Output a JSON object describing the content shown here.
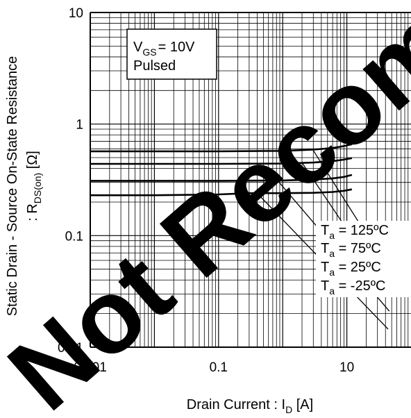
{
  "chart_data": {
    "type": "line",
    "scale": {
      "x": "log",
      "y": "log"
    },
    "xlim": [
      0.001,
      100
    ],
    "ylim": [
      0.01,
      10
    ],
    "grid": true,
    "x_ticks": [
      {
        "value": 0.001,
        "label": "0.001"
      },
      {
        "value": 0.1,
        "label": "0.1"
      },
      {
        "value": 10,
        "label": "10"
      }
    ],
    "y_ticks": [
      {
        "value": 10,
        "label": "10"
      },
      {
        "value": 1,
        "label": "1"
      },
      {
        "value": 0.1,
        "label": "0.1"
      },
      {
        "value": 0.01,
        "label": "0.01"
      }
    ],
    "xlabel": {
      "main": "Drain Current : I",
      "sub": "D",
      "unit": " [A]"
    },
    "ylabel": {
      "line1": "Static Drain - Source On-State Resistance",
      "line2_main": ": R",
      "line2_sub": "DS(on)",
      "line2_unit": " [Ω]"
    },
    "condition": {
      "line1_main": "V",
      "line1_sub": "GS",
      "line1_rest": "= 10V",
      "line2": "Pulsed"
    },
    "series": [
      {
        "name": "Ta = 125ºC",
        "label_main": "T",
        "label_sub": "a",
        "label_rest": " = 125ºC",
        "x": [
          0.001,
          0.01,
          0.1,
          1,
          3,
          6,
          9,
          12
        ],
        "y": [
          0.57,
          0.57,
          0.57,
          0.575,
          0.59,
          0.61,
          0.635,
          0.66
        ]
      },
      {
        "name": "Ta = 75ºC",
        "label_main": "T",
        "label_sub": "a",
        "label_rest": " = 75ºC",
        "x": [
          0.001,
          0.01,
          0.1,
          1,
          3,
          6,
          9,
          12
        ],
        "y": [
          0.44,
          0.44,
          0.44,
          0.443,
          0.452,
          0.465,
          0.48,
          0.495
        ]
      },
      {
        "name": "Ta = 25ºC",
        "label_main": "T",
        "label_sub": "a",
        "label_rest": " = 25ºC",
        "x": [
          0.001,
          0.01,
          0.1,
          1,
          3,
          6,
          9,
          12
        ],
        "y": [
          0.31,
          0.31,
          0.31,
          0.312,
          0.318,
          0.326,
          0.336,
          0.35
        ]
      },
      {
        "name": "Ta = -25ºC",
        "label_main": "T",
        "label_sub": "a",
        "label_rest": " = -25ºC",
        "x": [
          0.001,
          0.01,
          0.1,
          0.3,
          1,
          3,
          6,
          9,
          12
        ],
        "y": [
          0.23,
          0.23,
          0.234,
          0.24,
          0.24,
          0.242,
          0.246,
          0.252,
          0.26
        ]
      }
    ],
    "leader_lines": [
      {
        "from": [
          3,
          0.58
        ],
        "to": [
          50,
          0.045
        ]
      },
      {
        "from": [
          2,
          0.45
        ],
        "to": [
          48,
          0.03
        ]
      },
      {
        "from": [
          0.8,
          0.32
        ],
        "to": [
          46,
          0.021
        ]
      },
      {
        "from": [
          0.4,
          0.24
        ],
        "to": [
          44,
          0.0145
        ]
      }
    ],
    "watermark": {
      "text": "Not Recommended for New Designs",
      "color": "#000000"
    },
    "colors": {
      "line": "#000000",
      "grid": "#000000",
      "background": "#ffffff"
    }
  }
}
